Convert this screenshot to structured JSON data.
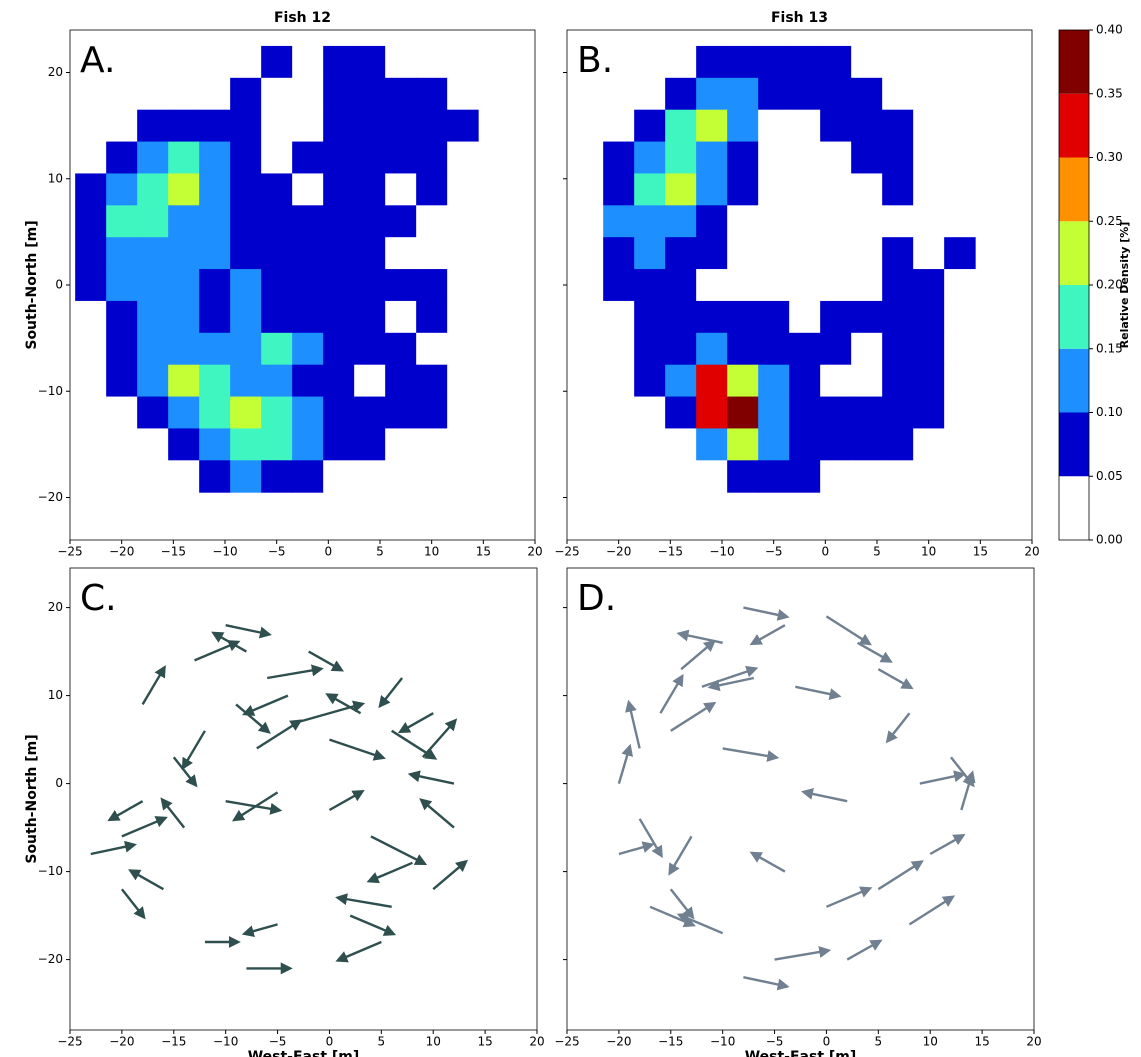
{
  "chart_data": [
    {
      "type": "contour",
      "title": "Fish 12",
      "panel_label": "A.",
      "ylabel": "South-North [m]",
      "xlim": [
        -25,
        20
      ],
      "ylim": [
        -24,
        24
      ],
      "xticks": [
        {
          "value": -25,
          "label": "−25"
        },
        {
          "value": -20,
          "label": "−20"
        },
        {
          "value": -15,
          "label": "−15"
        },
        {
          "value": -10,
          "label": "−10"
        },
        {
          "value": -5,
          "label": "−5"
        },
        0,
        5,
        10,
        15,
        20
      ],
      "yticks": [
        {
          "value": -20,
          "label": "−20"
        },
        {
          "value": -10,
          "label": "−10"
        },
        0,
        10,
        20
      ],
      "ytick_labels": true,
      "grid_x": [
        -23,
        -20,
        -17,
        -14,
        -11,
        -8,
        -5,
        -2,
        1,
        4,
        7,
        10,
        13
      ],
      "grid_y": [
        21,
        18,
        15,
        12,
        9,
        6,
        3,
        0,
        -3,
        -6,
        -9,
        -12,
        -15,
        -18
      ],
      "z": [
        [
          0,
          0,
          0,
          0,
          0,
          0,
          0.06,
          0,
          0.06,
          0.07,
          0,
          0,
          0
        ],
        [
          0,
          0,
          0,
          0,
          0,
          0.06,
          0,
          0,
          0.07,
          0.08,
          0.06,
          0.06,
          0
        ],
        [
          0,
          0,
          0.07,
          0.09,
          0.08,
          0.06,
          0,
          0,
          0.06,
          0.08,
          0.07,
          0.06,
          0.06
        ],
        [
          0,
          0.07,
          0.12,
          0.17,
          0.13,
          0.08,
          0,
          0.06,
          0.07,
          0.08,
          0.06,
          0.07,
          0
        ],
        [
          0.06,
          0.12,
          0.19,
          0.22,
          0.14,
          0.08,
          0.06,
          0,
          0.07,
          0.06,
          0,
          0.06,
          0
        ],
        [
          0.08,
          0.16,
          0.18,
          0.14,
          0.11,
          0.08,
          0.07,
          0.06,
          0.08,
          0.07,
          0.06,
          0,
          0
        ],
        [
          0.07,
          0.12,
          0.13,
          0.11,
          0.1,
          0.08,
          0.09,
          0.07,
          0.07,
          0.06,
          0,
          0,
          0
        ],
        [
          0.06,
          0.1,
          0.12,
          0.1,
          0.09,
          0.1,
          0.08,
          0.07,
          0.07,
          0.06,
          0.06,
          0.06,
          0
        ],
        [
          0,
          0.09,
          0.11,
          0.1,
          0.09,
          0.1,
          0.09,
          0.07,
          0.06,
          0.06,
          0,
          0.06,
          0
        ],
        [
          0,
          0.07,
          0.12,
          0.14,
          0.12,
          0.13,
          0.15,
          0.1,
          0.07,
          0.06,
          0.06,
          0,
          0
        ],
        [
          0,
          0.06,
          0.13,
          0.2,
          0.16,
          0.14,
          0.13,
          0.09,
          0.07,
          0,
          0.06,
          0.06,
          0
        ],
        [
          0,
          0,
          0.08,
          0.13,
          0.17,
          0.22,
          0.18,
          0.12,
          0.07,
          0.06,
          0.07,
          0.06,
          0
        ],
        [
          0,
          0,
          0,
          0.07,
          0.12,
          0.18,
          0.16,
          0.1,
          0.06,
          0.06,
          0,
          0,
          0
        ],
        [
          0,
          0,
          0,
          0,
          0.07,
          0.11,
          0.09,
          0.07,
          0,
          0,
          0,
          0,
          0
        ]
      ]
    },
    {
      "type": "contour",
      "title": "Fish 13",
      "panel_label": "B.",
      "xlim": [
        -25,
        20
      ],
      "ylim": [
        -24,
        24
      ],
      "xticks": [
        {
          "value": -25,
          "label": "−25"
        },
        {
          "value": -20,
          "label": "−20"
        },
        {
          "value": -15,
          "label": "−15"
        },
        {
          "value": -10,
          "label": "−10"
        },
        {
          "value": -5,
          "label": "−5"
        },
        0,
        5,
        10,
        15,
        20
      ],
      "yticks": [
        -20,
        -10,
        0,
        10,
        20
      ],
      "ytick_labels": false,
      "grid_x": [
        -23,
        -20,
        -17,
        -14,
        -11,
        -8,
        -5,
        -2,
        1,
        4,
        7,
        10,
        13
      ],
      "grid_y": [
        21,
        18,
        15,
        12,
        9,
        6,
        3,
        0,
        -3,
        -6,
        -9,
        -12,
        -15,
        -18
      ],
      "z": [
        [
          0,
          0,
          0,
          0,
          0.06,
          0.07,
          0.07,
          0.06,
          0.06,
          0,
          0,
          0,
          0
        ],
        [
          0,
          0,
          0,
          0.08,
          0.12,
          0.13,
          0.09,
          0.06,
          0.07,
          0.08,
          0,
          0,
          0
        ],
        [
          0,
          0,
          0.07,
          0.15,
          0.2,
          0.11,
          0,
          0,
          0.06,
          0.09,
          0.06,
          0,
          0
        ],
        [
          0,
          0.06,
          0.1,
          0.19,
          0.14,
          0.07,
          0,
          0,
          0,
          0.06,
          0.06,
          0,
          0
        ],
        [
          0,
          0.09,
          0.16,
          0.23,
          0.1,
          0.06,
          0,
          0,
          0,
          0,
          0.06,
          0,
          0
        ],
        [
          0,
          0.1,
          0.14,
          0.12,
          0.07,
          0,
          0,
          0,
          0,
          0,
          0,
          0,
          0
        ],
        [
          0,
          0.08,
          0.1,
          0.08,
          0.06,
          0,
          0,
          0,
          0,
          0,
          0.06,
          0,
          0.06
        ],
        [
          0,
          0.06,
          0.09,
          0.07,
          0,
          0,
          0,
          0,
          0,
          0,
          0.06,
          0.07,
          0
        ],
        [
          0,
          0,
          0.07,
          0.08,
          0.07,
          0.06,
          0.06,
          0,
          0.06,
          0.07,
          0.06,
          0.06,
          0
        ],
        [
          0,
          0,
          0.06,
          0.09,
          0.1,
          0.08,
          0.07,
          0.06,
          0.06,
          0,
          0.06,
          0.06,
          0
        ],
        [
          0,
          0,
          0.07,
          0.14,
          0.33,
          0.2,
          0.1,
          0.06,
          0,
          0,
          0.06,
          0.06,
          0
        ],
        [
          0,
          0,
          0,
          0.09,
          0.3,
          0.37,
          0.14,
          0.07,
          0.06,
          0.06,
          0.07,
          0.06,
          0
        ],
        [
          0,
          0,
          0,
          0,
          0.13,
          0.24,
          0.1,
          0.07,
          0.06,
          0.07,
          0.06,
          0,
          0
        ],
        [
          0,
          0,
          0,
          0,
          0,
          0.08,
          0.07,
          0.06,
          0,
          0,
          0,
          0,
          0
        ]
      ]
    },
    {
      "type": "quiver",
      "panel_label": "C.",
      "ylabel": "South-North [m]",
      "xlabel": "West-East [m]",
      "color": "#2f4f4f",
      "xlim": [
        -25,
        20
      ],
      "ylim": [
        -28,
        24.5
      ],
      "xticks": [
        {
          "value": -25,
          "label": "−25"
        },
        {
          "value": -20,
          "label": "−20"
        },
        {
          "value": -15,
          "label": "−15"
        },
        {
          "value": -10,
          "label": "−10"
        },
        {
          "value": -5,
          "label": "−5"
        },
        0,
        5,
        10,
        15,
        20
      ],
      "yticks": [
        {
          "value": -20,
          "label": "−20"
        },
        {
          "value": -10,
          "label": "−10"
        },
        0,
        10,
        20
      ],
      "ytick_labels": true,
      "x": [
        -10,
        -8,
        -6,
        -4,
        -9,
        -3,
        -12,
        -7,
        0,
        3,
        6,
        9,
        12,
        -15,
        -18,
        -20,
        -14,
        -10,
        -5,
        0,
        4,
        8,
        10,
        6,
        2,
        -5,
        -12,
        -20,
        -23,
        -16,
        -8,
        5,
        12,
        7,
        -13,
        -2,
        10,
        -18
      ],
      "y": [
        18,
        15,
        12,
        10,
        9,
        7,
        6,
        4,
        5,
        8,
        6,
        3,
        0,
        3,
        -2,
        -6,
        -5,
        -2,
        -1,
        -3,
        -6,
        -9,
        -12,
        -14,
        -15,
        -16,
        -18,
        -12,
        -8,
        -12,
        -21,
        -18,
        -5,
        12,
        14,
        15,
        8,
        9
      ],
      "u": [
        4,
        -3,
        5,
        -4,
        3,
        6,
        -2,
        4,
        5,
        -3,
        4,
        3,
        -4,
        2,
        -3,
        4,
        -2,
        5,
        -4,
        3,
        5,
        -4,
        3,
        -5,
        4,
        -3,
        3,
        2,
        4,
        -3,
        4,
        -4,
        -3,
        -2,
        4,
        3,
        -3,
        2
      ],
      "v": [
        -1,
        2,
        1,
        -2,
        -3,
        2,
        -4,
        3,
        -2,
        2,
        -3,
        4,
        1,
        -3,
        -2,
        2,
        3,
        -1,
        -3,
        2,
        -3,
        -2,
        3,
        1,
        -2,
        -1,
        0,
        -3,
        1,
        2,
        0,
        -2,
        3,
        -3,
        2,
        -2,
        -2,
        4
      ]
    },
    {
      "type": "quiver",
      "panel_label": "D.",
      "xlabel": "West-East [m]",
      "color": "#708090",
      "xlim": [
        -25,
        20
      ],
      "ylim": [
        -28,
        24.5
      ],
      "xticks": [
        {
          "value": -25,
          "label": "−25"
        },
        {
          "value": -20,
          "label": "−20"
        },
        {
          "value": -15,
          "label": "−15"
        },
        {
          "value": -10,
          "label": "−10"
        },
        {
          "value": -5,
          "label": "−5"
        },
        0,
        5,
        10,
        15,
        20
      ],
      "yticks": [
        -20,
        -10,
        0,
        10,
        20
      ],
      "ytick_labels": false,
      "x": [
        -8,
        -4,
        0,
        3,
        -10,
        -14,
        -12,
        -7,
        -16,
        -18,
        -20,
        -15,
        5,
        8,
        12,
        13,
        10,
        5,
        0,
        -5,
        -10,
        -15,
        -20,
        -18,
        -13,
        -8,
        2,
        -4,
        8,
        -10,
        -3,
        -17,
        2,
        9
      ],
      "y": [
        20,
        18,
        19,
        16,
        16,
        13,
        11,
        12,
        8,
        4,
        0,
        6,
        13,
        8,
        3,
        -3,
        -8,
        -12,
        -14,
        -20,
        -17,
        -12,
        -8,
        -4,
        -6,
        -22,
        -20,
        -10,
        -16,
        4,
        11,
        -14,
        -2,
        0
      ],
      "u": [
        4,
        -3,
        4,
        3,
        -4,
        3,
        5,
        -4,
        2,
        -1,
        1,
        4,
        3,
        -2,
        2,
        1,
        3,
        4,
        4,
        5,
        -4,
        2,
        3,
        2,
        -2,
        4,
        3,
        -3,
        4,
        5,
        4,
        4,
        -4,
        4
      ],
      "v": [
        -1,
        -2,
        -3,
        -2,
        1,
        3,
        2,
        -1,
        4,
        5,
        4,
        3,
        -2,
        -3,
        -3,
        4,
        2,
        3,
        2,
        1,
        2,
        -3,
        1,
        -4,
        -4,
        -1,
        2,
        2,
        3,
        -1,
        -1,
        -2,
        1,
        1
      ]
    },
    {
      "type": "colorbar",
      "label": "Relative Density [%]",
      "ylim": [
        0,
        0.4
      ],
      "colors": [
        "#ffffff",
        "#0000cd",
        "#1e8fff",
        "#3ff5c0",
        "#c4ff36",
        "#ff9000",
        "#e00000",
        "#800000"
      ],
      "ticks": [
        {
          "value": 0,
          "label": "0.00"
        },
        {
          "value": 0.05,
          "label": "0.05"
        },
        {
          "value": 0.1,
          "label": "0.10"
        },
        {
          "value": 0.15,
          "label": "0.15"
        },
        {
          "value": 0.2,
          "label": "0.20"
        },
        {
          "value": 0.25,
          "label": "0.25"
        },
        {
          "value": 0.3,
          "label": "0.30"
        },
        {
          "value": 0.35,
          "label": "0.35"
        },
        {
          "value": 0.4,
          "label": "0.40"
        }
      ]
    }
  ]
}
